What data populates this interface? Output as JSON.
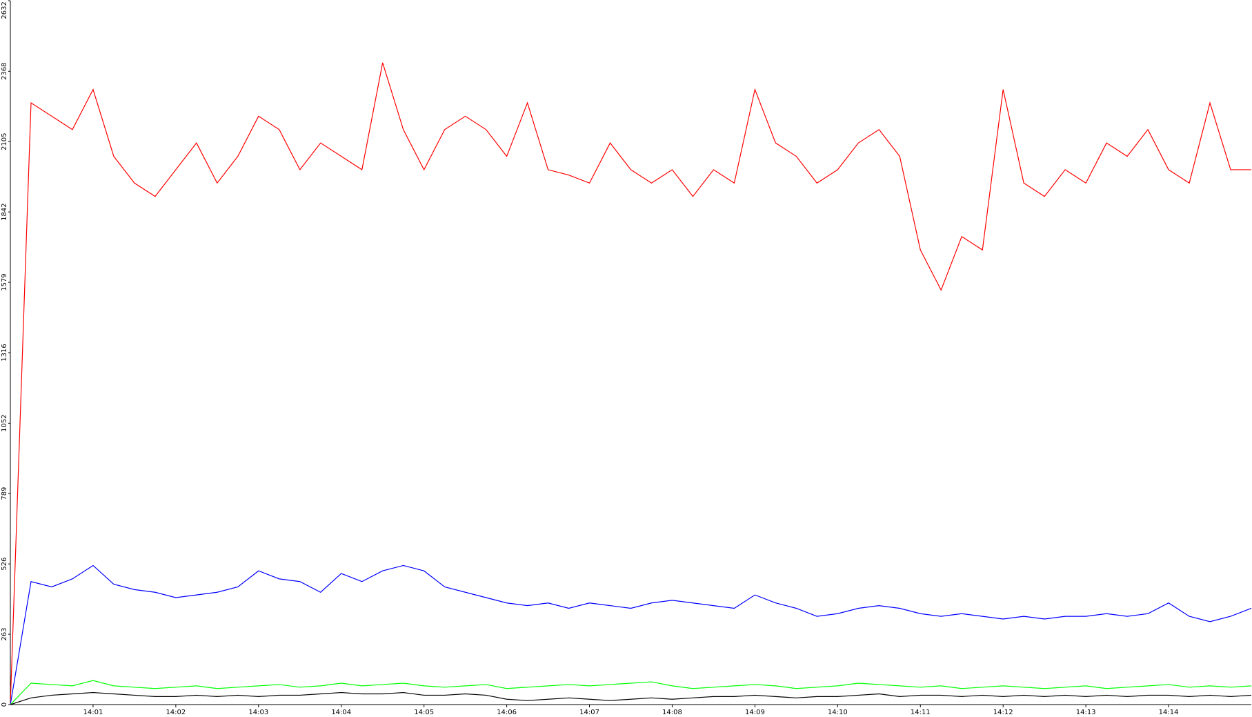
{
  "chart_data": {
    "type": "line",
    "x": [
      0,
      0.25,
      0.5,
      0.75,
      1,
      1.25,
      1.5,
      1.75,
      2,
      2.25,
      2.5,
      2.75,
      3,
      3.25,
      3.5,
      3.75,
      4,
      4.25,
      4.5,
      4.75,
      5,
      5.25,
      5.5,
      5.75,
      6,
      6.25,
      6.5,
      6.75,
      7,
      7.25,
      7.5,
      7.75,
      8,
      8.25,
      8.5,
      8.75,
      9,
      9.25,
      9.5,
      9.75,
      10,
      10.25,
      10.5,
      10.75,
      11,
      11.25,
      11.5,
      11.75,
      12,
      12.25,
      12.5,
      12.75,
      13,
      13.25,
      13.5,
      13.75,
      14,
      14.25,
      14.5,
      14.75,
      15
    ],
    "series": [
      {
        "color": "#ff0000",
        "values": [
          0,
          2250,
          2200,
          2150,
          2300,
          2050,
          1950,
          1900,
          2000,
          2100,
          1950,
          2050,
          2200,
          2150,
          2000,
          2100,
          2050,
          2000,
          2400,
          2150,
          2000,
          2150,
          2200,
          2150,
          2050,
          2250,
          2000,
          1980,
          1950,
          2100,
          2000,
          1950,
          2000,
          1900,
          2000,
          1950,
          2300,
          2100,
          2050,
          1950,
          2000,
          2100,
          2150,
          2050,
          1700,
          1550,
          1750,
          1700,
          2300,
          1950,
          1900,
          2000,
          1950,
          2100,
          2050,
          2150,
          2000,
          1950,
          2250,
          2000,
          2000
        ]
      },
      {
        "color": "#0000ff",
        "values": [
          0,
          460,
          440,
          470,
          520,
          450,
          430,
          420,
          400,
          410,
          420,
          440,
          500,
          470,
          460,
          420,
          490,
          460,
          500,
          520,
          500,
          440,
          420,
          400,
          380,
          370,
          380,
          360,
          380,
          370,
          360,
          380,
          390,
          380,
          370,
          360,
          410,
          380,
          360,
          330,
          340,
          360,
          370,
          360,
          340,
          330,
          340,
          330,
          320,
          330,
          320,
          330,
          330,
          340,
          330,
          340,
          380,
          330,
          310,
          330,
          360
        ]
      },
      {
        "color": "#00ff00",
        "values": [
          0,
          80,
          75,
          70,
          90,
          70,
          65,
          60,
          65,
          70,
          60,
          65,
          70,
          75,
          65,
          70,
          80,
          70,
          75,
          80,
          70,
          65,
          70,
          75,
          60,
          65,
          70,
          75,
          70,
          75,
          80,
          85,
          70,
          60,
          65,
          70,
          75,
          70,
          60,
          65,
          70,
          80,
          75,
          70,
          65,
          70,
          60,
          65,
          70,
          65,
          60,
          65,
          70,
          60,
          65,
          70,
          75,
          65,
          70,
          65,
          70
        ]
      },
      {
        "color": "#000000",
        "values": [
          0,
          25,
          35,
          40,
          45,
          40,
          35,
          30,
          30,
          35,
          30,
          35,
          30,
          35,
          35,
          40,
          45,
          40,
          40,
          45,
          35,
          35,
          40,
          35,
          20,
          15,
          20,
          25,
          20,
          15,
          20,
          25,
          20,
          25,
          30,
          30,
          35,
          30,
          25,
          30,
          30,
          35,
          40,
          30,
          35,
          35,
          30,
          35,
          30,
          35,
          30,
          35,
          30,
          35,
          30,
          35,
          35,
          30,
          35,
          30,
          35
        ]
      }
    ],
    "xlim": [
      0,
      15
    ],
    "xticks": [
      {
        "value": 1,
        "label": "14:01"
      },
      {
        "value": 2,
        "label": "14:02"
      },
      {
        "value": 3,
        "label": "14:03"
      },
      {
        "value": 4,
        "label": "14:04"
      },
      {
        "value": 5,
        "label": "14:05"
      },
      {
        "value": 6,
        "label": "14:06"
      },
      {
        "value": 7,
        "label": "14:07"
      },
      {
        "value": 8,
        "label": "14:08"
      },
      {
        "value": 9,
        "label": "14:09"
      },
      {
        "value": 10,
        "label": "14:10"
      },
      {
        "value": 11,
        "label": "14:11"
      },
      {
        "value": 12,
        "label": "14:12"
      },
      {
        "value": 13,
        "label": "14:13"
      },
      {
        "value": 14,
        "label": "14:14"
      }
    ],
    "ylim": [
      0,
      2632
    ],
    "yticks": [
      0,
      263,
      526,
      789,
      1052,
      1316,
      1579,
      1842,
      2105,
      2368,
      2632
    ]
  }
}
